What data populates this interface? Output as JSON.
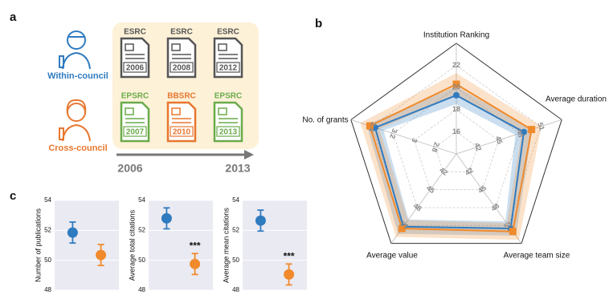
{
  "panels": [
    "a",
    "b",
    "c"
  ],
  "diagram": {
    "rows": [
      {
        "label": "Within-council",
        "color": "#2f7bc0",
        "docs": [
          {
            "council": "ESRC",
            "year": "2006",
            "color": "#555555"
          },
          {
            "council": "ESRC",
            "year": "2008",
            "color": "#555555"
          },
          {
            "council": "ESRC",
            "year": "2012",
            "color": "#555555"
          }
        ]
      },
      {
        "label": "Cross-council",
        "color": "#e8772e",
        "docs": [
          {
            "council": "EPSRC",
            "year": "2007",
            "color": "#6aab4a"
          },
          {
            "council": "BBSRC",
            "year": "2010",
            "color": "#e8772e"
          },
          {
            "council": "EPSRC",
            "year": "2013",
            "color": "#6aab4a"
          }
        ]
      }
    ],
    "timeline": {
      "start": "2006",
      "end": "2013"
    }
  },
  "chart_data": [
    {
      "type": "radar",
      "axes": [
        {
          "name": "Institution Ranking",
          "rlim": [
            14,
            24
          ],
          "ticks": [
            16,
            18,
            20,
            22
          ]
        },
        {
          "name": "Average duration",
          "rlim": [
            39,
            54
          ],
          "ticks": [
            42,
            45,
            48,
            51
          ]
        },
        {
          "name": "Average team size",
          "rlim": [
            39,
            54
          ],
          "ticks": [
            42,
            45,
            48,
            51
          ]
        },
        {
          "name": "Average value",
          "rlim": [
            39,
            54
          ],
          "ticks": [
            42,
            45,
            48,
            51
          ]
        },
        {
          "name": "No. of grants",
          "rlim": [
            2.6,
            3.6
          ],
          "ticks": [
            2.8,
            3.0,
            3.2,
            3.4
          ]
        }
      ],
      "series": [
        {
          "color": "#2f7bc0",
          "values": [
            19.3,
            48.6,
            51.5,
            51.2,
            3.37
          ],
          "errors": [
            0.8,
            1.2,
            1.2,
            1.2,
            0.08
          ]
        },
        {
          "color": "#f08a2c",
          "values": [
            20.3,
            49.7,
            52.0,
            51.5,
            3.42
          ],
          "errors": [
            1.0,
            1.4,
            1.4,
            1.4,
            0.09
          ]
        }
      ]
    },
    {
      "type": "errorbar",
      "ylabel": "Number of publications",
      "ylim": [
        48,
        54
      ],
      "yticks": [
        48,
        50,
        52,
        54
      ],
      "colors": [
        "#2f7bc0",
        "#f08a2c"
      ],
      "values": [
        51.85,
        50.35
      ],
      "errors": [
        0.7,
        0.7
      ]
    },
    {
      "type": "errorbar",
      "ylabel": "Average total citations",
      "ylim": [
        48,
        54
      ],
      "yticks": [
        48,
        50,
        52,
        54
      ],
      "colors": [
        "#2f7bc0",
        "#f08a2c"
      ],
      "values": [
        52.8,
        49.75
      ],
      "errors": [
        0.7,
        0.7
      ],
      "annotation": "***"
    },
    {
      "type": "errorbar",
      "ylabel": "Average mean citations",
      "ylim": [
        48,
        54
      ],
      "yticks": [
        48,
        50,
        52,
        54
      ],
      "colors": [
        "#2f7bc0",
        "#f08a2c"
      ],
      "values": [
        52.65,
        49.05
      ],
      "errors": [
        0.7,
        0.7
      ],
      "annotation": "***"
    }
  ]
}
